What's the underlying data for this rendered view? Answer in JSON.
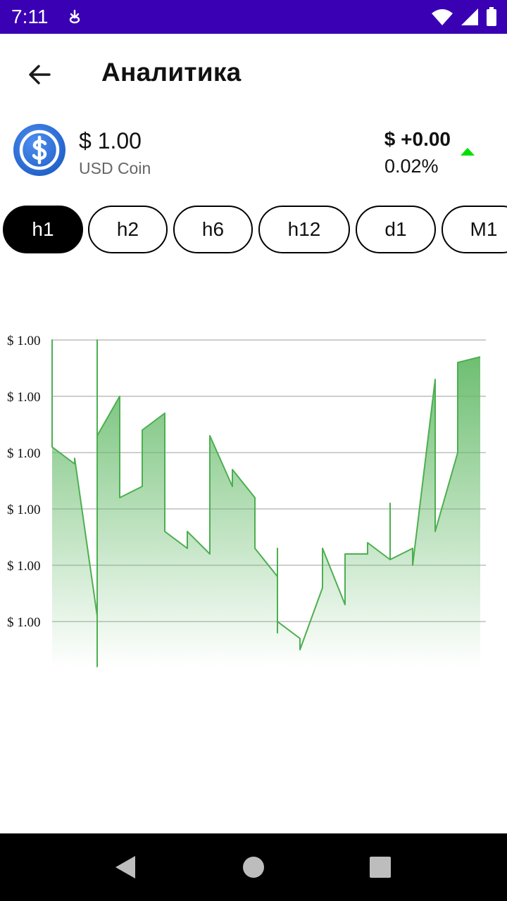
{
  "status_bar": {
    "time": "7:11",
    "notification_icon": "alert-icon",
    "icons": [
      "wifi-icon",
      "signal-icon",
      "battery-icon"
    ]
  },
  "app_bar": {
    "back_icon": "arrow-back-icon",
    "title": "Аналитика"
  },
  "coin": {
    "logo_icon": "usd-coin-logo",
    "price": "$ 1.00",
    "name": "USD Coin",
    "change_abs": "$ +0.00",
    "change_pct": "0.02%",
    "trend_icon": "triangle-up-icon",
    "trend_color": "#00e000"
  },
  "intervals": {
    "selected": "h1",
    "options": [
      "h1",
      "h2",
      "h6",
      "h12",
      "d1",
      "M1"
    ]
  },
  "chart_data": {
    "type": "area",
    "line_color": "#4caf50",
    "fill_color": "#66bb6a",
    "grid": true,
    "y_tick_labels": [
      "$ 1.00",
      "$ 1.00",
      "$ 1.00",
      "$ 1.00",
      "$ 1.00",
      "$ 1.00"
    ],
    "series": [
      {
        "values": [
          [
            0,
            3.9
          ],
          [
            0,
            5.0
          ],
          [
            0,
            3.1
          ],
          [
            1,
            2.8
          ],
          [
            1,
            2.9
          ],
          [
            2,
            0.1
          ],
          [
            2,
            -0.8
          ],
          [
            2,
            5.0
          ],
          [
            2,
            3.3
          ],
          [
            3,
            4.0
          ],
          [
            3,
            2.2
          ],
          [
            4,
            2.4
          ],
          [
            4,
            3.4
          ],
          [
            5,
            3.7
          ],
          [
            5,
            1.6
          ],
          [
            6,
            1.3
          ],
          [
            6,
            1.6
          ],
          [
            7,
            1.2
          ],
          [
            7,
            3.3
          ],
          [
            8,
            2.4
          ],
          [
            8,
            2.7
          ],
          [
            9,
            2.2
          ],
          [
            9,
            1.3
          ],
          [
            10,
            0.8
          ],
          [
            10,
            1.3
          ],
          [
            10,
            -0.2
          ],
          [
            10,
            0.0
          ],
          [
            11,
            -0.3
          ],
          [
            11,
            -0.5
          ],
          [
            12,
            0.6
          ],
          [
            12,
            1.3
          ],
          [
            13,
            0.3
          ],
          [
            13,
            1.2
          ],
          [
            14,
            1.2
          ],
          [
            14,
            1.4
          ],
          [
            15,
            1.1
          ],
          [
            15,
            2.1
          ],
          [
            15,
            1.1
          ],
          [
            16,
            1.3
          ],
          [
            16,
            1.0
          ],
          [
            17,
            4.3
          ],
          [
            17,
            1.6
          ],
          [
            18,
            3.0
          ],
          [
            18,
            4.6
          ],
          [
            19,
            4.7
          ]
        ]
      }
    ]
  },
  "nav_bar": {
    "icons": [
      "back-triangle-icon",
      "home-circle-icon",
      "recents-square-icon"
    ]
  }
}
